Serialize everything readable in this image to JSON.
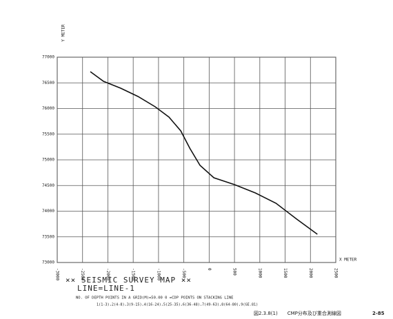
{
  "chart_data": {
    "type": "line",
    "title": "×× SEISMIC SURVEY MAP ××",
    "subtitle": "LINE=LINE-1",
    "xlabel": "X METER",
    "ylabel": "Y METER",
    "notes": [
      "NO. OF DEPTH POINTS IN A GRID(M)=50.00      0 =CDP POINTS ON STACKING LINE",
      "1(1-3),2(4-8),3(9-15),4(16-24),5(25-35),6(36-48),7(49-63),8(64-80),9(GE.81)"
    ],
    "x": [
      -2346,
      -2087,
      -1747,
      -1406,
      -1065,
      -793,
      -561,
      -384,
      -180,
      93,
      502,
      911,
      1319,
      1728,
      2137
    ],
    "values": [
      76718,
      76530,
      76396,
      76235,
      76034,
      75832,
      75564,
      75228,
      74893,
      74651,
      74517,
      74356,
      74154,
      73846,
      73550
    ],
    "color": "#111111",
    "xlim": [
      -3000,
      2500
    ],
    "ylim": [
      73000,
      77000
    ],
    "xticks": [
      -3000,
      -2500,
      -2000,
      -1500,
      -1000,
      -500,
      0,
      500,
      1000,
      1500,
      2000,
      2500
    ],
    "yticks": [
      73000,
      73500,
      74000,
      74500,
      75000,
      75500,
      76000,
      76500,
      77000
    ],
    "grid": true
  },
  "footer": {
    "caption": "図2.3.8(1)　　CMP分布及び重合測線図",
    "page": "2-85"
  }
}
